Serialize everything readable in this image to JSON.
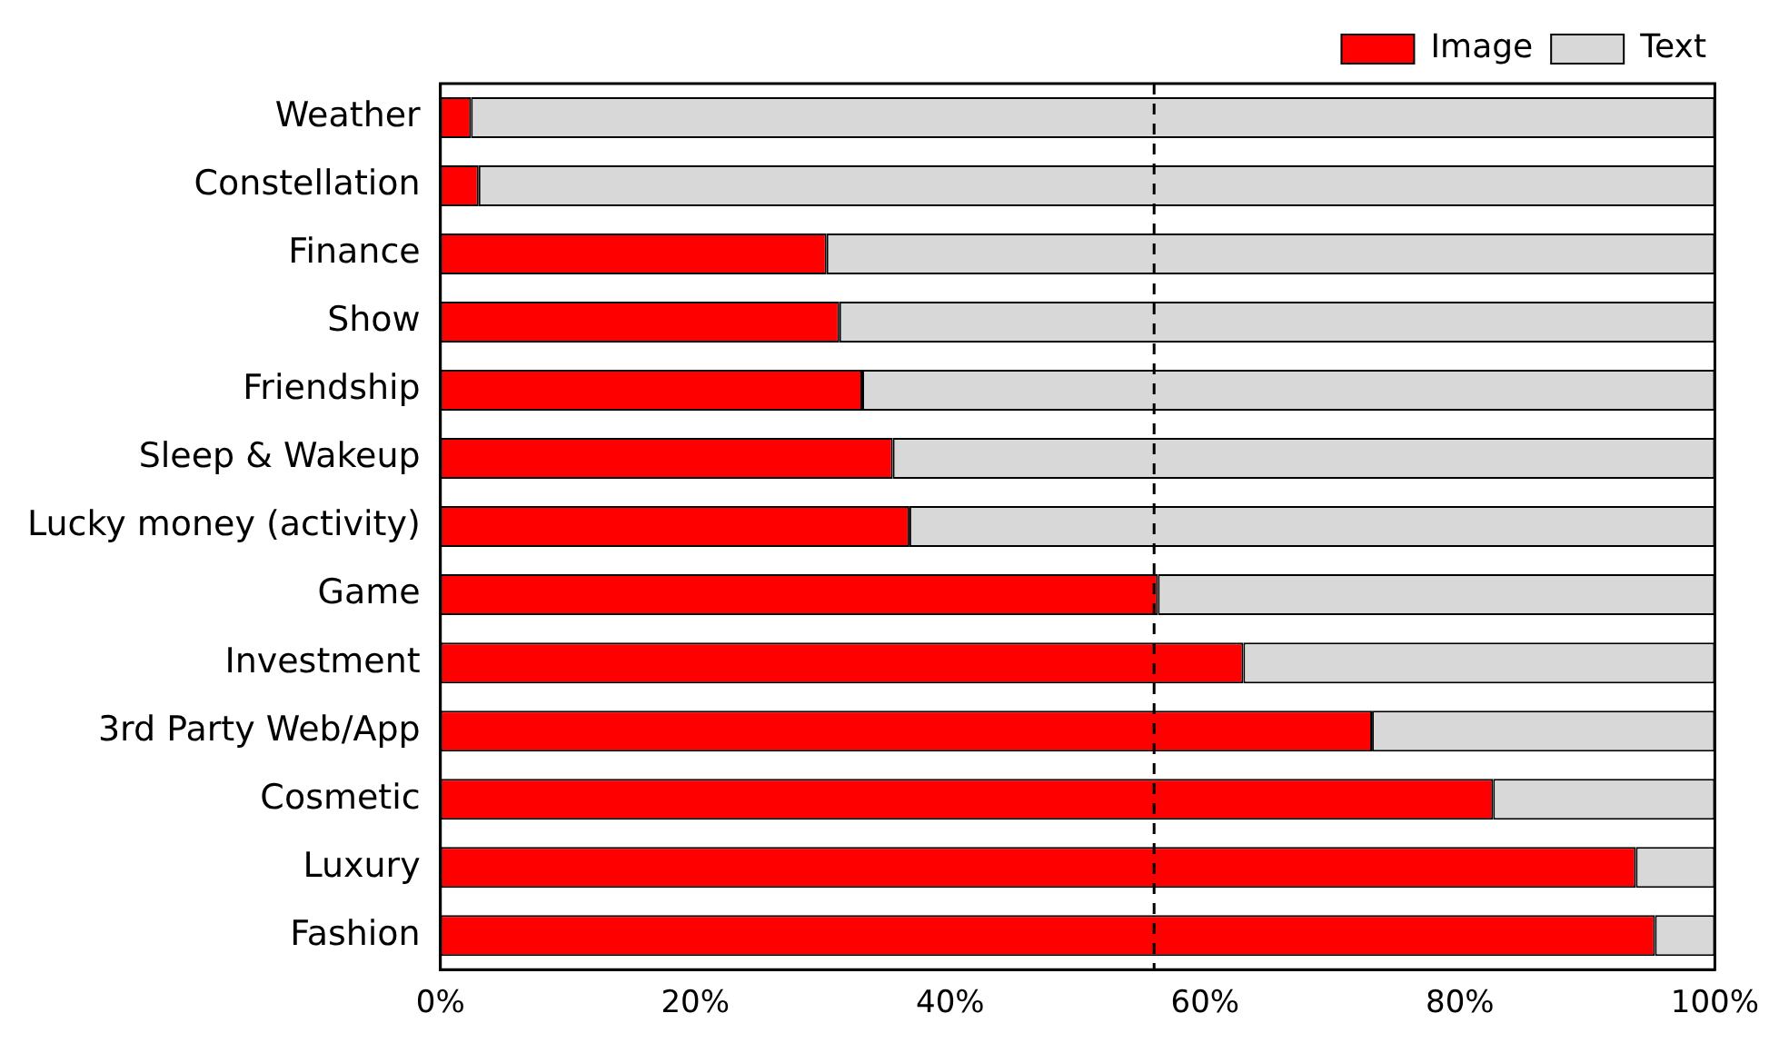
{
  "chart_data": {
    "type": "bar",
    "orientation": "horizontal",
    "stacked": true,
    "categories": [
      "Weather",
      "Constellation",
      "Finance",
      "Show",
      "Friendship",
      "Sleep & Wakeup",
      "Lucky money (activity)",
      "Game",
      "Investment",
      "3rd Party Web/App",
      "Cosmetic",
      "Luxury",
      "Fashion"
    ],
    "series": [
      {
        "name": "Image",
        "color": "#ff0000",
        "values": [
          2.4,
          3.0,
          30.3,
          31.3,
          33.1,
          35.5,
          36.8,
          56.3,
          63.0,
          73.1,
          82.6,
          93.8,
          95.3
        ]
      },
      {
        "name": "Text",
        "color": "#d8d8d8",
        "values": [
          97.6,
          97.0,
          69.7,
          68.7,
          66.9,
          64.5,
          63.2,
          43.7,
          37.0,
          26.9,
          17.4,
          6.2,
          4.7
        ]
      }
    ],
    "xlim": [
      0,
      100
    ],
    "xticks": [
      {
        "value": 0,
        "label": "0%"
      },
      {
        "value": 20,
        "label": "20%"
      },
      {
        "value": 40,
        "label": "40%"
      },
      {
        "value": 60,
        "label": "60%"
      },
      {
        "value": 80,
        "label": "80%"
      },
      {
        "value": 100,
        "label": "100%"
      }
    ],
    "ref_lines": [
      {
        "axis": "x",
        "value": 56,
        "line_style": "dashed",
        "color": "#000000"
      }
    ],
    "grid": false,
    "legend": "top right"
  }
}
